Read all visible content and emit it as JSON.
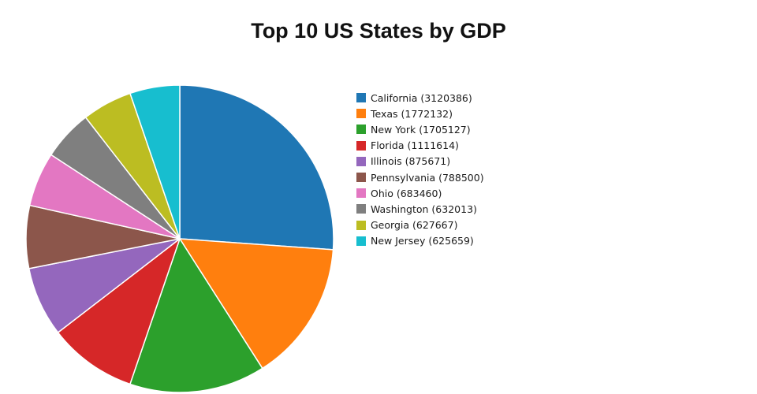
{
  "title": "Top 10 US States by GDP",
  "chart_data": {
    "type": "pie",
    "title": "Top 10 US States by GDP",
    "labels": [
      "California",
      "Texas",
      "New York",
      "Florida",
      "Illinois",
      "Pennsylvania",
      "Ohio",
      "Washington",
      "Georgia",
      "New Jersey"
    ],
    "values": [
      3120386,
      1772132,
      1705127,
      1111614,
      875671,
      788500,
      683460,
      632013,
      627667,
      625659
    ],
    "colors": [
      "#1f77b4",
      "#ff7f0e",
      "#2ca02c",
      "#d62728",
      "#9467bd",
      "#8c564b",
      "#e377c2",
      "#7f7f7f",
      "#bcbd22",
      "#17becf"
    ],
    "legend_labels": [
      "California (3120386)",
      "Texas (1772132)",
      "New York (1705127)",
      "Florida (1111614)",
      "Illinois (875671)",
      "Pennsylvania (788500)",
      "Ohio (683460)",
      "Washington (632013)",
      "Georgia (627667)",
      "New Jersey (625659)"
    ],
    "legend_position": "right",
    "start_angle_deg": 90,
    "direction": "clockwise",
    "slice_border_color": "#ffffff"
  }
}
